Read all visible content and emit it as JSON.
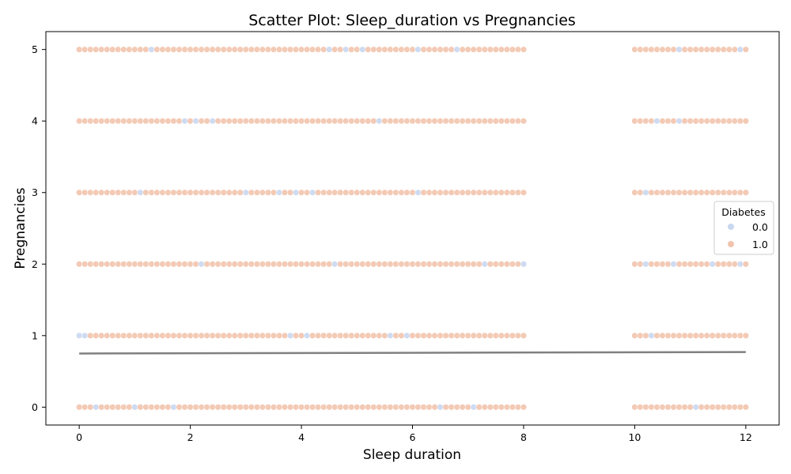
{
  "chart_data": {
    "type": "scatter",
    "title": "Scatter Plot: Sleep_duration vs Pregnancies",
    "xlabel": "Sleep duration",
    "ylabel": "Pregnancies",
    "xlim": [
      -0.6,
      12.6
    ],
    "ylim": [
      -0.25,
      5.25
    ],
    "xticks": [
      0,
      2,
      4,
      6,
      8,
      10,
      12
    ],
    "yticks": [
      0,
      1,
      2,
      3,
      4,
      5
    ],
    "grid": false,
    "legend": {
      "title": "Diabetes",
      "placement": "right",
      "entries": [
        {
          "label": "0.0",
          "color": "#c9d7f0"
        },
        {
          "label": "1.0",
          "color": "#f2c4ad"
        }
      ]
    },
    "point_x_groups": [
      {
        "start": 0,
        "end": 8,
        "step": 0.1
      },
      {
        "start": 10,
        "end": 12,
        "step": 0.1
      }
    ],
    "point_y_levels": [
      0,
      1,
      2,
      3,
      4,
      5
    ],
    "series": [
      {
        "name": "1.0",
        "color": "#f2c4ad",
        "description_hint": "dense points at every level",
        "pattern": "fill"
      },
      {
        "name": "0.0",
        "color": "#c9d7f0",
        "x_by_level": {
          "0": [
            0.3,
            1.0,
            1.7,
            6.5,
            7.1,
            11.1
          ],
          "1": [
            0.0,
            0.1,
            3.8,
            4.1,
            5.6,
            5.9,
            10.3
          ],
          "2": [
            2.2,
            4.6,
            7.3,
            8.0,
            10.2,
            10.7,
            11.4,
            11.9
          ],
          "3": [
            1.1,
            3.0,
            3.6,
            3.9,
            4.2,
            6.1,
            10.2
          ],
          "4": [
            1.9,
            2.1,
            2.4,
            5.4,
            10.4,
            10.8
          ],
          "5": [
            1.3,
            4.5,
            4.8,
            5.1,
            6.1,
            6.8,
            10.8,
            11.9
          ]
        }
      }
    ],
    "trend_line": {
      "color": "#808080",
      "points": [
        [
          0,
          0.75
        ],
        [
          12,
          0.77
        ]
      ]
    }
  }
}
